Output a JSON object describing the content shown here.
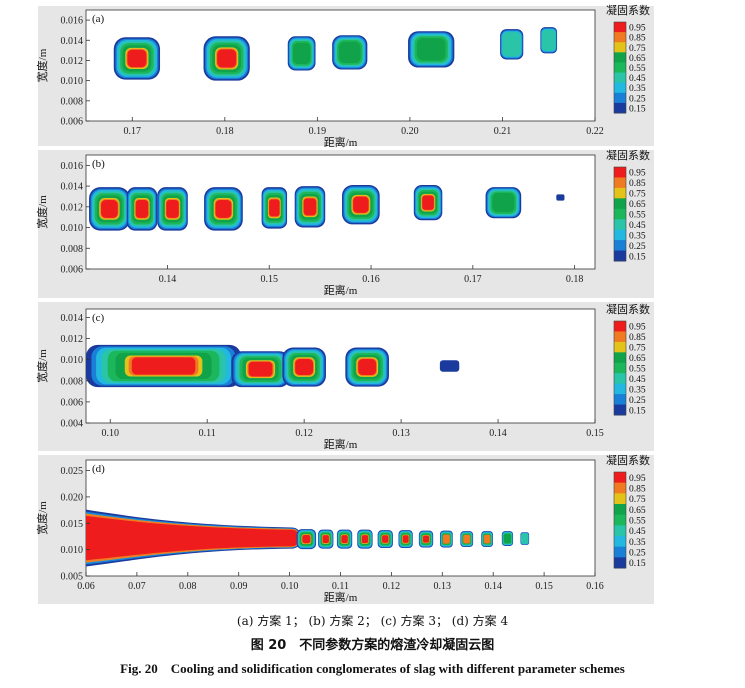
{
  "caption": {
    "subcaption": "(a) 方案 1； (b) 方案 2； (c) 方案 3； (d) 方案 4",
    "title_cn": "图 20　不同参数方案的熔渣冷却凝固云图",
    "title_en": "Fig. 20　Cooling and solidification conglomerates of slag with different parameter schemes"
  },
  "chart_data": [
    {
      "type": "heatmap",
      "panel_label": "(a)",
      "xlabel": "距离/m",
      "ylabel": "宽度/m",
      "xlim": [
        0.165,
        0.22
      ],
      "ylim": [
        0.006,
        0.017
      ],
      "xticks": [
        "0.17",
        "0.18",
        "0.19",
        "0.20",
        "0.21",
        "0.22"
      ],
      "yticks": [
        "0.006",
        "0.008",
        "0.010",
        "0.012",
        "0.014",
        "0.016"
      ],
      "colorbar_title": "凝固系数",
      "colorbar_labels": [
        "0.95",
        "0.85",
        "0.75",
        "0.65",
        "0.55",
        "0.45",
        "0.35",
        "0.25",
        "0.15"
      ],
      "blobs": [
        {
          "x": 0.1705,
          "y": 0.0122,
          "w": 0.005,
          "h": 0.0042,
          "max": 0.95
        },
        {
          "x": 0.1802,
          "y": 0.0122,
          "w": 0.005,
          "h": 0.0044,
          "max": 0.95
        },
        {
          "x": 0.1883,
          "y": 0.0127,
          "w": 0.003,
          "h": 0.0034,
          "max": 0.65
        },
        {
          "x": 0.1935,
          "y": 0.0128,
          "w": 0.0038,
          "h": 0.0034,
          "max": 0.65
        },
        {
          "x": 0.2023,
          "y": 0.0131,
          "w": 0.005,
          "h": 0.0036,
          "max": 0.65
        },
        {
          "x": 0.211,
          "y": 0.0136,
          "w": 0.0025,
          "h": 0.003,
          "max": 0.45
        },
        {
          "x": 0.215,
          "y": 0.014,
          "w": 0.0018,
          "h": 0.0026,
          "max": 0.45
        }
      ]
    },
    {
      "type": "heatmap",
      "panel_label": "(b)",
      "xlabel": "距离/m",
      "ylabel": "宽度/m",
      "xlim": [
        0.132,
        0.182
      ],
      "ylim": [
        0.006,
        0.017
      ],
      "xticks": [
        "0.14",
        "0.15",
        "0.16",
        "0.17",
        "0.18"
      ],
      "yticks": [
        "0.006",
        "0.008",
        "0.010",
        "0.012",
        "0.014",
        "0.016"
      ],
      "colorbar_title": "凝固系数",
      "colorbar_labels": [
        "0.95",
        "0.85",
        "0.75",
        "0.65",
        "0.55",
        "0.45",
        "0.35",
        "0.25",
        "0.15"
      ],
      "blobs": [
        {
          "x": 0.1343,
          "y": 0.0118,
          "w": 0.004,
          "h": 0.0042,
          "max": 0.95
        },
        {
          "x": 0.1375,
          "y": 0.0118,
          "w": 0.003,
          "h": 0.0042,
          "max": 0.95
        },
        {
          "x": 0.1405,
          "y": 0.0118,
          "w": 0.003,
          "h": 0.0042,
          "max": 0.95
        },
        {
          "x": 0.1455,
          "y": 0.0118,
          "w": 0.0038,
          "h": 0.0042,
          "max": 0.95
        },
        {
          "x": 0.1505,
          "y": 0.0119,
          "w": 0.0025,
          "h": 0.004,
          "max": 0.95
        },
        {
          "x": 0.154,
          "y": 0.012,
          "w": 0.003,
          "h": 0.004,
          "max": 0.95
        },
        {
          "x": 0.159,
          "y": 0.0122,
          "w": 0.0037,
          "h": 0.0038,
          "max": 0.95
        },
        {
          "x": 0.1656,
          "y": 0.0124,
          "w": 0.0028,
          "h": 0.0034,
          "max": 0.95
        },
        {
          "x": 0.173,
          "y": 0.0124,
          "w": 0.0035,
          "h": 0.003,
          "max": 0.65
        },
        {
          "x": 0.1786,
          "y": 0.0129,
          "w": 0.0008,
          "h": 0.0006,
          "max": 0.15
        }
      ]
    },
    {
      "type": "heatmap",
      "panel_label": "(c)",
      "xlabel": "距离/m",
      "ylabel": "宽度/m",
      "xlim": [
        0.0975,
        0.15
      ],
      "ylim": [
        0.004,
        0.0148
      ],
      "xticks": [
        "0.10",
        "0.11",
        "0.12",
        "0.13",
        "0.14",
        "0.15"
      ],
      "yticks": [
        "0.004",
        "0.006",
        "0.008",
        "0.010",
        "0.012",
        "0.014"
      ],
      "colorbar_title": "凝固系数",
      "colorbar_labels": [
        "0.95",
        "0.85",
        "0.75",
        "0.65",
        "0.55",
        "0.45",
        "0.35",
        "0.25",
        "0.15"
      ],
      "blobs": [
        {
          "x": 0.1055,
          "y": 0.0094,
          "w": 0.016,
          "h": 0.004,
          "max": 0.95
        },
        {
          "x": 0.1155,
          "y": 0.0091,
          "w": 0.006,
          "h": 0.0034,
          "max": 0.95
        },
        {
          "x": 0.12,
          "y": 0.0093,
          "w": 0.0045,
          "h": 0.0037,
          "max": 0.95
        },
        {
          "x": 0.1265,
          "y": 0.0093,
          "w": 0.0045,
          "h": 0.0037,
          "max": 0.95
        },
        {
          "x": 0.135,
          "y": 0.0094,
          "w": 0.002,
          "h": 0.0011,
          "max": 0.15
        }
      ]
    },
    {
      "type": "heatmap",
      "panel_label": "(d)",
      "xlabel": "距离/m",
      "ylabel": "宽度/m",
      "xlim": [
        0.06,
        0.16
      ],
      "ylim": [
        0.005,
        0.027
      ],
      "xticks": [
        "0.06",
        "0.07",
        "0.08",
        "0.09",
        "0.10",
        "0.11",
        "0.12",
        "0.13",
        "0.14",
        "0.15",
        "0.16"
      ],
      "yticks": [
        "0.005",
        "0.010",
        "0.015",
        "0.020",
        "0.025"
      ],
      "colorbar_title": "凝固系数",
      "colorbar_labels": [
        "0.95",
        "0.85",
        "0.75",
        "0.65",
        "0.55",
        "0.45",
        "0.35",
        "0.25",
        "0.15"
      ],
      "stream": {
        "x0": 0.06,
        "x1": 0.1005,
        "y_center": 0.0122,
        "h_start": 0.011,
        "h_end": 0.004,
        "max": 0.95
      },
      "blobs": [
        {
          "x": 0.1033,
          "y": 0.012,
          "w": 0.0038,
          "h": 0.0038,
          "max": 0.95
        },
        {
          "x": 0.1071,
          "y": 0.012,
          "w": 0.003,
          "h": 0.0036,
          "max": 0.95
        },
        {
          "x": 0.1108,
          "y": 0.012,
          "w": 0.003,
          "h": 0.0036,
          "max": 0.95
        },
        {
          "x": 0.1148,
          "y": 0.012,
          "w": 0.003,
          "h": 0.0036,
          "max": 0.95
        },
        {
          "x": 0.1188,
          "y": 0.012,
          "w": 0.003,
          "h": 0.0034,
          "max": 0.95
        },
        {
          "x": 0.1228,
          "y": 0.012,
          "w": 0.0028,
          "h": 0.0034,
          "max": 0.95
        },
        {
          "x": 0.1268,
          "y": 0.012,
          "w": 0.0028,
          "h": 0.0032,
          "max": 0.95
        },
        {
          "x": 0.1308,
          "y": 0.012,
          "w": 0.0025,
          "h": 0.0032,
          "max": 0.85
        },
        {
          "x": 0.1348,
          "y": 0.012,
          "w": 0.0025,
          "h": 0.003,
          "max": 0.85
        },
        {
          "x": 0.1388,
          "y": 0.012,
          "w": 0.0023,
          "h": 0.003,
          "max": 0.85
        },
        {
          "x": 0.1428,
          "y": 0.0121,
          "w": 0.0022,
          "h": 0.0028,
          "max": 0.65
        },
        {
          "x": 0.1462,
          "y": 0.0121,
          "w": 0.0017,
          "h": 0.0024,
          "max": 0.45
        }
      ]
    }
  ],
  "palette": {
    "0.95": "#ee1c1c",
    "0.85": "#f07a22",
    "0.75": "#e3c21a",
    "0.65": "#10a34a",
    "0.55": "#1cb65b",
    "0.45": "#2ac4a8",
    "0.35": "#22b8e0",
    "0.25": "#1a7fd6",
    "0.15": "#1a3a9e"
  },
  "panel_bg": "#ffffff",
  "figure_bg": "#e6e6e6"
}
